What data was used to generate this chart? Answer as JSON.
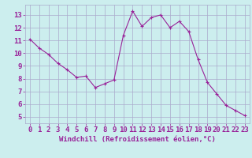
{
  "x": [
    0,
    1,
    2,
    3,
    4,
    5,
    6,
    7,
    8,
    9,
    10,
    11,
    12,
    13,
    14,
    15,
    16,
    17,
    18,
    19,
    20,
    21,
    22,
    23
  ],
  "y": [
    11.1,
    10.4,
    9.9,
    9.2,
    8.7,
    8.1,
    8.2,
    7.3,
    7.6,
    7.9,
    11.4,
    13.3,
    12.1,
    12.8,
    13.0,
    12.0,
    12.5,
    11.7,
    9.5,
    7.7,
    6.8,
    5.9,
    5.5,
    5.1
  ],
  "line_color": "#992299",
  "marker_color": "#992299",
  "bg_color": "#cceeee",
  "grid_color": "#aaaacc",
  "xlabel": "Windchill (Refroidissement éolien,°C)",
  "ylim": [
    4.5,
    13.8
  ],
  "xlim": [
    -0.5,
    23.5
  ],
  "yticks": [
    5,
    6,
    7,
    8,
    9,
    10,
    11,
    12,
    13
  ],
  "xticks": [
    0,
    1,
    2,
    3,
    4,
    5,
    6,
    7,
    8,
    9,
    10,
    11,
    12,
    13,
    14,
    15,
    16,
    17,
    18,
    19,
    20,
    21,
    22,
    23
  ],
  "xlabel_color": "#992299",
  "tick_color": "#992299",
  "axis_label_fontsize": 6.5,
  "tick_fontsize": 6.5
}
